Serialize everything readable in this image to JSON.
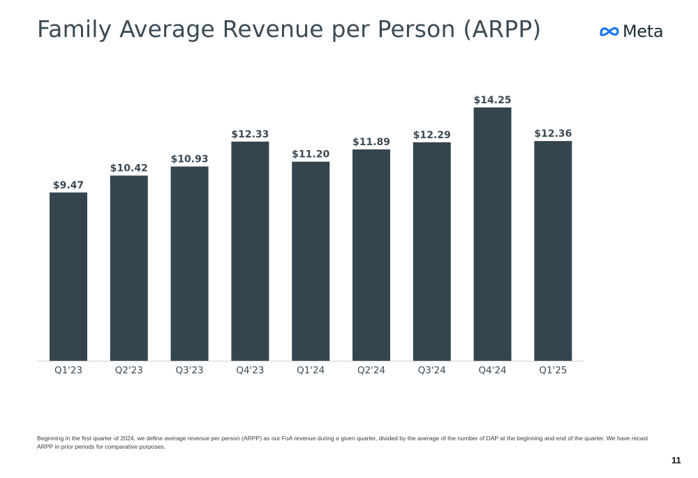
{
  "title": "Family Average Revenue per Person (ARPP)",
  "brand": {
    "name": "Meta",
    "logo_icon": "meta-infinity-logo",
    "logo_color": "#1877f2"
  },
  "footnote": "Beginning in the first quarter of 2024, we define average revenue per person (ARPP) as our FoA revenue during a given quarter, divided by the average of the number of DAP at the beginning and end of the quarter. We have recast ARPP in prior periods for comparative purposes.",
  "page_number": "11",
  "chart_data": {
    "type": "bar",
    "title": "Family Average Revenue per Person (ARPP)",
    "categories": [
      "Q1'23",
      "Q2'23",
      "Q3'23",
      "Q4'23",
      "Q1'24",
      "Q2'24",
      "Q3'24",
      "Q4'24",
      "Q1'25"
    ],
    "values": [
      9.47,
      10.42,
      10.93,
      12.33,
      11.2,
      11.89,
      12.29,
      14.25,
      12.36
    ],
    "data_labels": [
      "$9.47",
      "$10.42",
      "$10.93",
      "$12.33",
      "$11.20",
      "$11.89",
      "$12.29",
      "$14.25",
      "$12.36"
    ],
    "xlabel": "",
    "ylabel": "",
    "ylim": [
      0,
      14.25
    ],
    "grid": false,
    "legend": "none",
    "bar_color": "#35454f",
    "axis_color": "#c9cdd0",
    "label_color": "#3b4a55"
  }
}
